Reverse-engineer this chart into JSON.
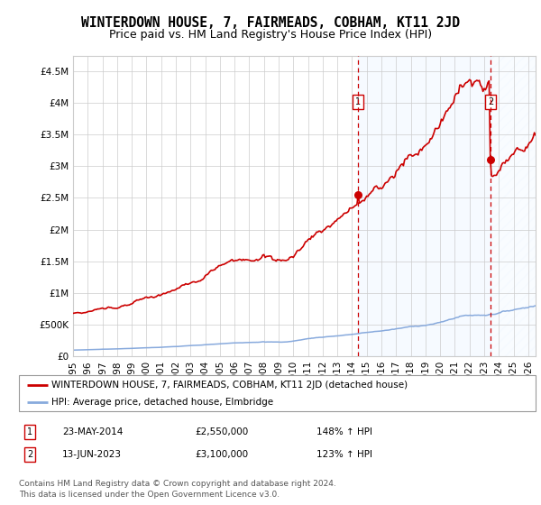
{
  "title": "WINTERDOWN HOUSE, 7, FAIRMEADS, COBHAM, KT11 2JD",
  "subtitle": "Price paid vs. HM Land Registry's House Price Index (HPI)",
  "ylabel_ticks": [
    "£0",
    "£500K",
    "£1M",
    "£1.5M",
    "£2M",
    "£2.5M",
    "£3M",
    "£3.5M",
    "£4M",
    "£4.5M"
  ],
  "ytick_values": [
    0,
    500000,
    1000000,
    1500000,
    2000000,
    2500000,
    3000000,
    3500000,
    4000000,
    4500000
  ],
  "ylim": [
    0,
    4750000
  ],
  "xlim_start": 1995,
  "xlim_end": 2026.5,
  "purchase1_date": 2014.39,
  "purchase1_value": 2550000,
  "purchase1_label": "1",
  "purchase2_date": 2023.45,
  "purchase2_value": 3100000,
  "purchase2_label": "2",
  "legend_house": "WINTERDOWN HOUSE, 7, FAIRMEADS, COBHAM, KT11 2JD (detached house)",
  "legend_hpi": "HPI: Average price, detached house, Elmbridge",
  "table_row1_label": "1",
  "table_row1_date": "23-MAY-2014",
  "table_row1_price": "£2,550,000",
  "table_row1_hpi": "148% ↑ HPI",
  "table_row2_label": "2",
  "table_row2_date": "13-JUN-2023",
  "table_row2_price": "£3,100,000",
  "table_row2_hpi": "123% ↑ HPI",
  "footer": "Contains HM Land Registry data © Crown copyright and database right 2024.\nThis data is licensed under the Open Government Licence v3.0.",
  "house_line_color": "#cc0000",
  "hpi_line_color": "#88aadd",
  "purchase_dot_color": "#cc0000",
  "vline_color": "#cc0000",
  "background_shaded_color": "#ddeeff",
  "grid_color": "#cccccc",
  "title_fontsize": 10.5,
  "subtitle_fontsize": 9,
  "tick_fontsize": 7.5,
  "legend_fontsize": 7.5,
  "footer_fontsize": 6.5
}
